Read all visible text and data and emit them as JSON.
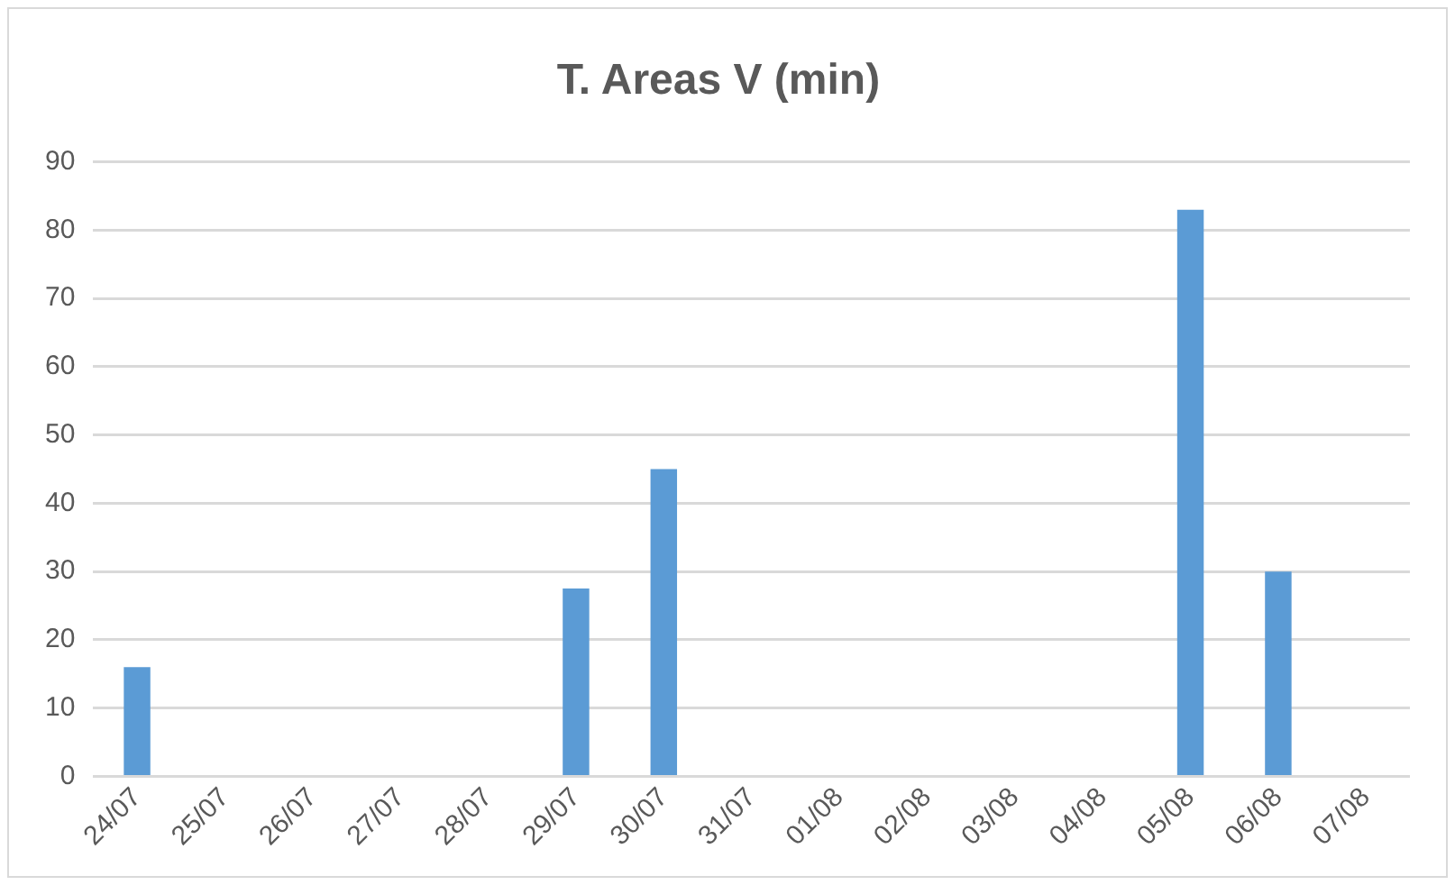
{
  "chart_data": {
    "type": "bar",
    "title": "T. Areas V (min)",
    "categories": [
      "24/07",
      "25/07",
      "26/07",
      "27/07",
      "28/07",
      "29/07",
      "30/07",
      "31/07",
      "01/08",
      "02/08",
      "03/08",
      "04/08",
      "05/08",
      "06/08",
      "07/08"
    ],
    "values": [
      16,
      null,
      null,
      null,
      null,
      27.5,
      45,
      null,
      null,
      null,
      null,
      null,
      83,
      30,
      null
    ],
    "color": "#5b9bd5",
    "ylim": [
      0,
      90
    ],
    "yticks": [
      0,
      10,
      20,
      30,
      40,
      50,
      60,
      70,
      80,
      90
    ],
    "grid": "y",
    "legend": false
  }
}
